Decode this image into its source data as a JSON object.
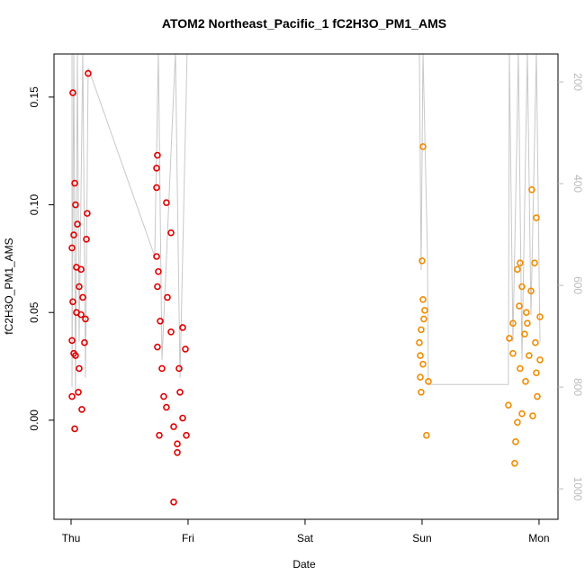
{
  "chart_data": {
    "type": "scatter",
    "title": "ATOM2 Northeast_Pacific_1 fC2H3O_PM1_AMS",
    "xlabel": "Date",
    "ylabel": "fC2H3O_PM1_AMS",
    "xlim": [
      -0.146,
      4.162
    ],
    "xticks": [
      {
        "value": 0,
        "label": "Thu"
      },
      {
        "value": 1,
        "label": "Fri"
      },
      {
        "value": 2,
        "label": "Sat"
      },
      {
        "value": 3,
        "label": "Sun"
      },
      {
        "value": 4,
        "label": "Mon"
      }
    ],
    "ylim": [
      -0.046,
      0.17
    ],
    "yticks": [
      {
        "value": 0,
        "label": "0.00"
      },
      0.05,
      {
        "value": 0.1,
        "label": "0.10"
      },
      0.15
    ],
    "y2lim": [
      1060,
      145
    ],
    "y2ticks": [
      200,
      400,
      600,
      800,
      1000
    ],
    "y2color": "#bbbbbb",
    "series": [
      {
        "color": "#e00000",
        "x": [
          0.015,
          0.146,
          0.031,
          0.038,
          0.023,
          0.008,
          0.046,
          0.069,
          0.015,
          0.085,
          0.123,
          0.008,
          0.023,
          0.069,
          0.062,
          0.008,
          0.092,
          0.031,
          0.138,
          0.131,
          0.1,
          0.046,
          0.115,
          0.038,
          0.085,
          0.054,
          0.738,
          0.731,
          0.731,
          0.815,
          0.854,
          0.731,
          0.746,
          0.738,
          0.823,
          0.762,
          0.854,
          0.738,
          0.777,
          0.954,
          0.923,
          0.792,
          0.815,
          0.931,
          0.954,
          0.877,
          0.754,
          0.985,
          0.908,
          0.908,
          0.877,
          0.977
        ],
        "values": [
          0.152,
          0.161,
          0.11,
          0.1,
          0.086,
          0.08,
          0.071,
          0.062,
          0.055,
          0.049,
          0.047,
          0.037,
          0.031,
          0.024,
          0.013,
          0.011,
          0.005,
          -0.004,
          0.096,
          0.084,
          0.057,
          0.05,
          0.036,
          0.03,
          0.07,
          0.091,
          0.123,
          0.117,
          0.108,
          0.101,
          0.087,
          0.076,
          0.069,
          0.062,
          0.057,
          0.046,
          0.041,
          0.034,
          0.024,
          0.043,
          0.024,
          0.011,
          0.006,
          0.013,
          0.001,
          -0.003,
          -0.007,
          -0.007,
          -0.011,
          -0.015,
          -0.038,
          0.033
        ]
      },
      {
        "color": "#f08c00",
        "x": [
          3.008,
          3.0,
          3.008,
          3.023,
          3.015,
          2.992,
          2.977,
          2.985,
          3.008,
          2.985,
          3.054,
          2.992,
          3.038,
          3.938,
          3.977,
          3.838,
          3.962,
          3.854,
          3.931,
          3.831,
          3.892,
          4.008,
          3.777,
          3.877,
          3.969,
          3.746,
          3.777,
          3.915,
          3.838,
          3.977,
          3.885,
          3.738,
          3.985,
          3.854,
          3.815,
          3.946,
          3.8,
          3.792,
          4.008,
          3.9,
          3.815
        ],
        "values": [
          0.127,
          0.074,
          0.056,
          0.051,
          0.047,
          0.042,
          0.036,
          0.03,
          0.026,
          0.02,
          0.018,
          0.013,
          -0.007,
          0.107,
          0.094,
          0.073,
          0.073,
          0.062,
          0.06,
          0.053,
          0.05,
          0.048,
          0.045,
          0.04,
          0.036,
          0.038,
          0.031,
          0.03,
          0.024,
          0.022,
          0.018,
          0.007,
          0.011,
          0.003,
          -0.001,
          0.002,
          -0.01,
          -0.02,
          0.028,
          0.045,
          0.07
        ]
      },
      {
        "type": "line",
        "axis": "y2",
        "color": "#c8c8c8",
        "x": [
          0.008,
          0.008,
          0.023,
          0.038,
          0.054,
          0.069,
          0.1,
          0.123,
          0.146,
          0.715,
          0.746,
          0.777,
          0.892,
          0.931,
          0.992,
          2.977,
          2.992,
          3.008,
          3.046,
          3.054,
          3.738,
          3.746,
          3.777,
          3.808,
          3.823,
          3.854,
          3.9,
          3.931,
          3.977,
          4.008
        ],
        "values": [
          140,
          800,
          140,
          818,
          140,
          711,
          140,
          782,
          172,
          543,
          140,
          747,
          140,
          782,
          140,
          140,
          570,
          140,
          535,
          795,
          795,
          140,
          711,
          340,
          140,
          747,
          140,
          659,
          140,
          711
        ]
      }
    ]
  }
}
